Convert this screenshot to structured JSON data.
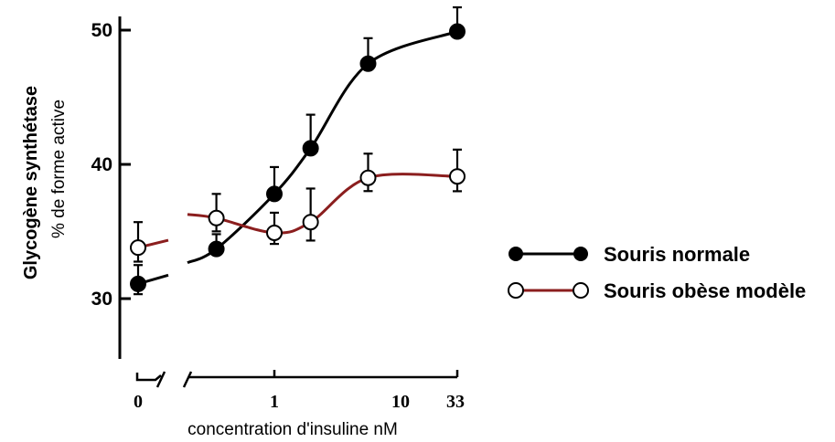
{
  "chart_data": {
    "type": "line",
    "ylabel": "Glycogène synthétase",
    "ylabel_sub": "% de forme active",
    "xlabel": "concentration d'insuline nM",
    "x_scale": "log (broken axis at 0)",
    "x_tick_labels": [
      "0",
      "1",
      "10",
      "33"
    ],
    "y_tick_labels": [
      "30",
      "40",
      "50"
    ],
    "ylim": [
      25,
      51
    ],
    "legend_position": "right",
    "series": [
      {
        "name": "Souris normale",
        "marker": "filled-circle",
        "color": "#000000",
        "x": [
          0,
          0.33,
          1,
          2,
          6,
          33
        ],
        "y": [
          31.1,
          33.7,
          37.8,
          41.2,
          47.5,
          49.9
        ],
        "error": [
          1.4,
          1.1,
          2.0,
          2.5,
          1.9,
          1.8
        ]
      },
      {
        "name": "Souris obèse modèle",
        "marker": "open-circle",
        "color": "#8b1e1e",
        "x": [
          0,
          0.33,
          1,
          2,
          6,
          33
        ],
        "y": [
          33.8,
          36.0,
          34.9,
          35.7,
          39.0,
          39.1
        ],
        "error": [
          1.9,
          1.8,
          1.5,
          2.5,
          1.8,
          2.0
        ]
      }
    ]
  }
}
